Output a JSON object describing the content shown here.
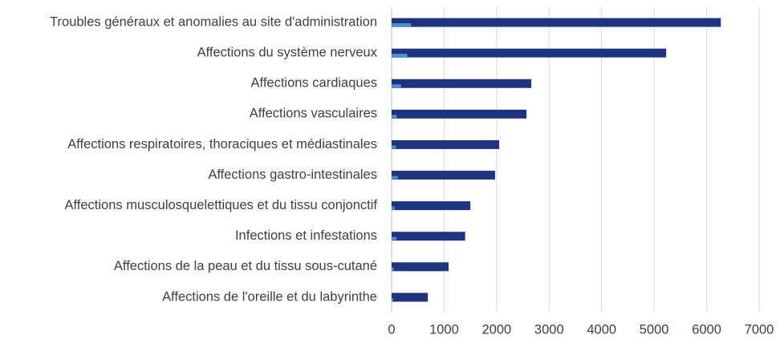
{
  "chart_data": {
    "type": "bar",
    "orientation": "horizontal",
    "categories": [
      "Troubles généraux et anomalies au site d'administration",
      "Affections du système nerveux",
      "Affections cardiaques",
      "Affections vasculaires",
      "Affections respiratoires, thoraciques et médiastinales",
      "Affections gastro-intestinales",
      "Affections musculosquelettiques et du tissu conjonctif",
      "Infections et infestations",
      "Affections de la peau et du tissu sous-cutané",
      "Affections de l'oreille et du labyrinthe"
    ],
    "series": [
      {
        "color": "#1f3480",
        "values": [
          6270,
          5230,
          2660,
          2570,
          2050,
          1970,
          1500,
          1400,
          1085,
          690
        ]
      },
      {
        "color": "#4a90d9",
        "values": [
          370,
          300,
          180,
          100,
          80,
          120,
          60,
          90,
          40,
          30
        ]
      }
    ],
    "xlim": [
      0,
      7000
    ],
    "xticks": [
      0,
      1000,
      2000,
      3000,
      4000,
      5000,
      6000,
      7000
    ],
    "grid": true
  }
}
